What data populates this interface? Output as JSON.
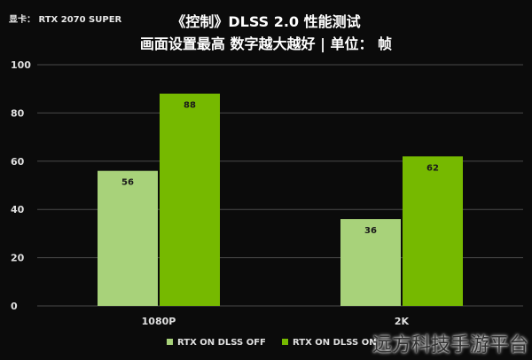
{
  "header": {
    "gpu_label": "显卡： RTX 2070 SUPER",
    "title_line1": "《控制》DLSS 2.0 性能测试",
    "title_line2": "画面设置最高 数字越大越好 | 单位： 帧"
  },
  "watermark": "远方科技手游平台",
  "chart_data": {
    "type": "bar",
    "categories": [
      "1080P",
      "2K"
    ],
    "series": [
      {
        "name": "RTX ON DLSS OFF",
        "values": [
          56,
          36
        ],
        "color": "#a8d27a"
      },
      {
        "name": "RTX ON DLSS ON",
        "values": [
          88,
          62
        ],
        "color": "#76b900"
      }
    ],
    "ylim": [
      0,
      100
    ],
    "yticks": [
      0,
      20,
      40,
      60,
      80,
      100
    ],
    "grid": true,
    "legend": "bottom",
    "background": "#0b0b0b"
  }
}
